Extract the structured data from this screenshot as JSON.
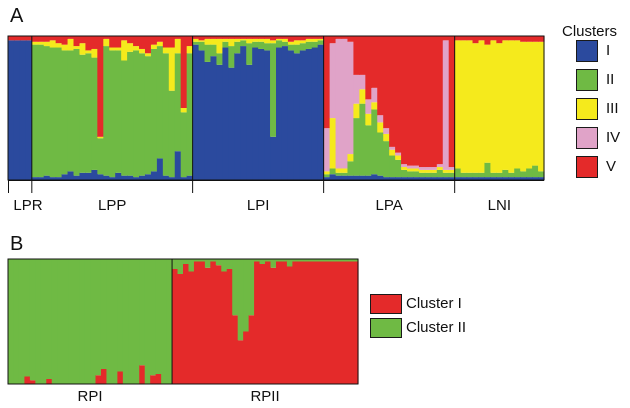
{
  "colors": {
    "I": "#2b4a9e",
    "II": "#6fba44",
    "III": "#f5ea1c",
    "IV": "#e0a3c8",
    "V": "#e42a2a",
    "RI": "#e42a2a",
    "RII": "#6fba44"
  },
  "chart_data": [
    {
      "panel": "A",
      "type": "bar",
      "stacked": true,
      "title": "",
      "xlabel": "",
      "ylabel": "",
      "ylim": [
        0,
        1
      ],
      "cluster_order": [
        "I",
        "II",
        "III",
        "IV",
        "V"
      ],
      "legend": {
        "title": "Clusters",
        "placement": "right",
        "entries": [
          "I",
          "II",
          "III",
          "IV",
          "V"
        ]
      },
      "populations": [
        {
          "name": "LPR",
          "n": 4
        },
        {
          "name": "LPP",
          "n": 27
        },
        {
          "name": "LPI",
          "n": 22
        },
        {
          "name": "LPA",
          "n": 22
        },
        {
          "name": "LNI",
          "n": 15
        }
      ],
      "individuals": [
        [
          0.97,
          0,
          0,
          0,
          0.03
        ],
        [
          0.97,
          0,
          0,
          0,
          0.03
        ],
        [
          0.97,
          0,
          0,
          0,
          0.03
        ],
        [
          0.97,
          0,
          0,
          0,
          0.03
        ],
        [
          0.02,
          0.92,
          0.02,
          0,
          0.04
        ],
        [
          0.02,
          0.92,
          0.02,
          0,
          0.04
        ],
        [
          0.03,
          0.9,
          0.03,
          0,
          0.04
        ],
        [
          0.02,
          0.9,
          0.05,
          0,
          0.03
        ],
        [
          0.02,
          0.9,
          0.03,
          0,
          0.05
        ],
        [
          0.04,
          0.86,
          0.04,
          0,
          0.06
        ],
        [
          0.06,
          0.84,
          0.08,
          0,
          0.02
        ],
        [
          0.03,
          0.88,
          0.02,
          0,
          0.07
        ],
        [
          0.05,
          0.82,
          0.08,
          0,
          0.05
        ],
        [
          0.05,
          0.83,
          0.02,
          0,
          0.1
        ],
        [
          0.07,
          0.78,
          0.06,
          0,
          0.09
        ],
        [
          0.04,
          0.25,
          0.01,
          0,
          0.7
        ],
        [
          0.03,
          0.9,
          0.05,
          0,
          0.02
        ],
        [
          0.02,
          0.88,
          0.02,
          0,
          0.08
        ],
        [
          0.05,
          0.85,
          0.02,
          0,
          0.08
        ],
        [
          0.03,
          0.8,
          0.14,
          0,
          0.03
        ],
        [
          0.03,
          0.86,
          0.06,
          0,
          0.05
        ],
        [
          0.02,
          0.88,
          0.03,
          0,
          0.07
        ],
        [
          0.03,
          0.85,
          0.03,
          0,
          0.09
        ],
        [
          0.04,
          0.82,
          0.02,
          0,
          0.12
        ],
        [
          0.06,
          0.85,
          0.03,
          0,
          0.06
        ],
        [
          0.15,
          0.78,
          0.03,
          0,
          0.04
        ],
        [
          0.03,
          0.85,
          0.04,
          0,
          0.08
        ],
        [
          0.02,
          0.6,
          0.3,
          0,
          0.08
        ],
        [
          0.2,
          0.68,
          0.1,
          0,
          0.02
        ],
        [
          0.02,
          0.45,
          0.03,
          0,
          0.5
        ],
        [
          0.03,
          0.85,
          0.05,
          0,
          0.07
        ],
        [
          0.94,
          0.02,
          0.02,
          0,
          0.02
        ],
        [
          0.9,
          0.06,
          0.01,
          0,
          0.03
        ],
        [
          0.82,
          0.12,
          0.04,
          0,
          0.02
        ],
        [
          0.86,
          0.08,
          0.04,
          0,
          0.02
        ],
        [
          0.8,
          0.08,
          0.1,
          0,
          0.02
        ],
        [
          0.92,
          0.04,
          0.02,
          0,
          0.02
        ],
        [
          0.78,
          0.15,
          0.05,
          0,
          0.02
        ],
        [
          0.88,
          0.08,
          0.02,
          0,
          0.02
        ],
        [
          0.93,
          0.04,
          0.01,
          0,
          0.02
        ],
        [
          0.8,
          0.15,
          0.03,
          0,
          0.02
        ],
        [
          0.92,
          0.04,
          0.02,
          0,
          0.02
        ],
        [
          0.91,
          0.05,
          0.02,
          0,
          0.02
        ],
        [
          0.9,
          0.05,
          0.03,
          0,
          0.02
        ],
        [
          0.3,
          0.65,
          0.02,
          0,
          0.03
        ],
        [
          0.92,
          0.05,
          0.01,
          0,
          0.02
        ],
        [
          0.93,
          0.03,
          0.02,
          0,
          0.02
        ],
        [
          0.9,
          0.04,
          0.02,
          0,
          0.04
        ],
        [
          0.88,
          0.06,
          0.03,
          0,
          0.03
        ],
        [
          0.9,
          0.05,
          0.02,
          0,
          0.03
        ],
        [
          0.91,
          0.05,
          0.02,
          0,
          0.02
        ],
        [
          0.92,
          0.04,
          0.02,
          0,
          0.02
        ],
        [
          0.94,
          0.03,
          0.01,
          0,
          0.02
        ],
        [
          0.02,
          0.02,
          0.02,
          0.3,
          0.64
        ],
        [
          0.04,
          0.04,
          0.35,
          0.52,
          0.05
        ],
        [
          0.03,
          0.02,
          0.03,
          0.9,
          0.02
        ],
        [
          0.03,
          0.02,
          0.03,
          0.9,
          0.02
        ],
        [
          0.03,
          0.1,
          0.05,
          0.78,
          0.04
        ],
        [
          0.03,
          0.4,
          0.1,
          0.2,
          0.27
        ],
        [
          0.03,
          0.5,
          0.1,
          0.1,
          0.27
        ],
        [
          0.03,
          0.35,
          0.08,
          0.1,
          0.44
        ],
        [
          0.04,
          0.45,
          0.05,
          0.1,
          0.36
        ],
        [
          0.03,
          0.3,
          0.07,
          0.05,
          0.55
        ],
        [
          0.02,
          0.25,
          0.05,
          0.04,
          0.64
        ],
        [
          0.02,
          0.15,
          0.04,
          0.02,
          0.77
        ],
        [
          0.02,
          0.12,
          0.03,
          0.02,
          0.81
        ],
        [
          0.02,
          0.05,
          0.02,
          0.02,
          0.89
        ],
        [
          0.02,
          0.04,
          0.02,
          0.02,
          0.9
        ],
        [
          0.02,
          0.04,
          0.02,
          0.02,
          0.9
        ],
        [
          0.02,
          0.03,
          0.02,
          0.02,
          0.91
        ],
        [
          0.02,
          0.03,
          0.02,
          0.02,
          0.91
        ],
        [
          0.02,
          0.03,
          0.02,
          0.02,
          0.91
        ],
        [
          0.02,
          0.05,
          0.02,
          0.02,
          0.89
        ],
        [
          0.02,
          0.03,
          0.02,
          0.9,
          0.03
        ],
        [
          0.02,
          0.03,
          0.02,
          0.02,
          0.91
        ],
        [
          0.02,
          0.06,
          0.89,
          0,
          0.03
        ],
        [
          0.02,
          0.03,
          0.92,
          0,
          0.03
        ],
        [
          0.02,
          0.03,
          0.92,
          0,
          0.03
        ],
        [
          0.02,
          0.03,
          0.9,
          0,
          0.05
        ],
        [
          0.02,
          0.03,
          0.92,
          0,
          0.03
        ],
        [
          0.02,
          0.1,
          0.82,
          0,
          0.06
        ],
        [
          0.02,
          0.03,
          0.92,
          0,
          0.03
        ],
        [
          0.02,
          0.03,
          0.9,
          0,
          0.05
        ],
        [
          0.02,
          0.05,
          0.9,
          0,
          0.03
        ],
        [
          0.02,
          0.03,
          0.92,
          0,
          0.03
        ],
        [
          0.02,
          0.06,
          0.89,
          0,
          0.03
        ],
        [
          0.02,
          0.04,
          0.9,
          0,
          0.04
        ],
        [
          0.02,
          0.06,
          0.88,
          0,
          0.04
        ],
        [
          0.02,
          0.08,
          0.86,
          0,
          0.04
        ],
        [
          0.02,
          0.04,
          0.9,
          0,
          0.04
        ]
      ]
    },
    {
      "panel": "B",
      "type": "bar",
      "stacked": true,
      "title": "",
      "xlabel": "",
      "ylabel": "",
      "ylim": [
        0,
        1
      ],
      "cluster_order": [
        "Cluster I",
        "Cluster II"
      ],
      "legend": {
        "placement": "right",
        "entries": [
          "Cluster I",
          "Cluster II"
        ]
      },
      "populations": [
        {
          "name": "RPI",
          "n": 30
        },
        {
          "name": "RPII",
          "n": 34
        }
      ],
      "individuals": [
        [
          0.0,
          1.0
        ],
        [
          0.0,
          1.0
        ],
        [
          0.0,
          1.0
        ],
        [
          0.06,
          0.94
        ],
        [
          0.03,
          0.97
        ],
        [
          0.0,
          1.0
        ],
        [
          0.0,
          1.0
        ],
        [
          0.04,
          0.96
        ],
        [
          0.0,
          1.0
        ],
        [
          0.0,
          1.0
        ],
        [
          0.0,
          1.0
        ],
        [
          0.0,
          1.0
        ],
        [
          0.0,
          1.0
        ],
        [
          0.0,
          1.0
        ],
        [
          0.0,
          1.0
        ],
        [
          0.0,
          1.0
        ],
        [
          0.07,
          0.93
        ],
        [
          0.12,
          0.88
        ],
        [
          0.0,
          1.0
        ],
        [
          0.0,
          1.0
        ],
        [
          0.1,
          0.9
        ],
        [
          0.0,
          1.0
        ],
        [
          0.0,
          1.0
        ],
        [
          0.0,
          1.0
        ],
        [
          0.15,
          0.85
        ],
        [
          0.0,
          1.0
        ],
        [
          0.07,
          0.93
        ],
        [
          0.08,
          0.92
        ],
        [
          0.0,
          1.0
        ],
        [
          0.0,
          1.0
        ],
        [
          0.92,
          0.08
        ],
        [
          0.88,
          0.12
        ],
        [
          0.96,
          0.04
        ],
        [
          0.9,
          0.1
        ],
        [
          0.98,
          0.02
        ],
        [
          0.98,
          0.02
        ],
        [
          0.93,
          0.07
        ],
        [
          0.98,
          0.02
        ],
        [
          0.95,
          0.05
        ],
        [
          0.9,
          0.1
        ],
        [
          0.92,
          0.08
        ],
        [
          0.55,
          0.45
        ],
        [
          0.35,
          0.65
        ],
        [
          0.42,
          0.58
        ],
        [
          0.55,
          0.45
        ],
        [
          0.98,
          0.02
        ],
        [
          0.96,
          0.04
        ],
        [
          0.98,
          0.02
        ],
        [
          0.93,
          0.07
        ],
        [
          0.98,
          0.02
        ],
        [
          0.98,
          0.02
        ],
        [
          0.94,
          0.06
        ],
        [
          0.98,
          0.02
        ],
        [
          0.98,
          0.02
        ],
        [
          0.98,
          0.02
        ],
        [
          0.98,
          0.02
        ],
        [
          0.98,
          0.02
        ],
        [
          0.98,
          0.02
        ],
        [
          0.98,
          0.02
        ],
        [
          0.98,
          0.02
        ],
        [
          0.98,
          0.02
        ],
        [
          0.98,
          0.02
        ],
        [
          0.98,
          0.02
        ],
        [
          0.98,
          0.02
        ]
      ]
    }
  ],
  "panels": {
    "a_label": "A",
    "b_label": "B"
  },
  "legend_a": {
    "title": "Clusters",
    "items": [
      {
        "key": "I",
        "label": "I"
      },
      {
        "key": "II",
        "label": "II"
      },
      {
        "key": "III",
        "label": "III"
      },
      {
        "key": "IV",
        "label": "IV"
      },
      {
        "key": "V",
        "label": "V"
      }
    ]
  },
  "legend_b": {
    "items": [
      {
        "key": "RI",
        "label": "Cluster I"
      },
      {
        "key": "RII",
        "label": "Cluster II"
      }
    ]
  }
}
